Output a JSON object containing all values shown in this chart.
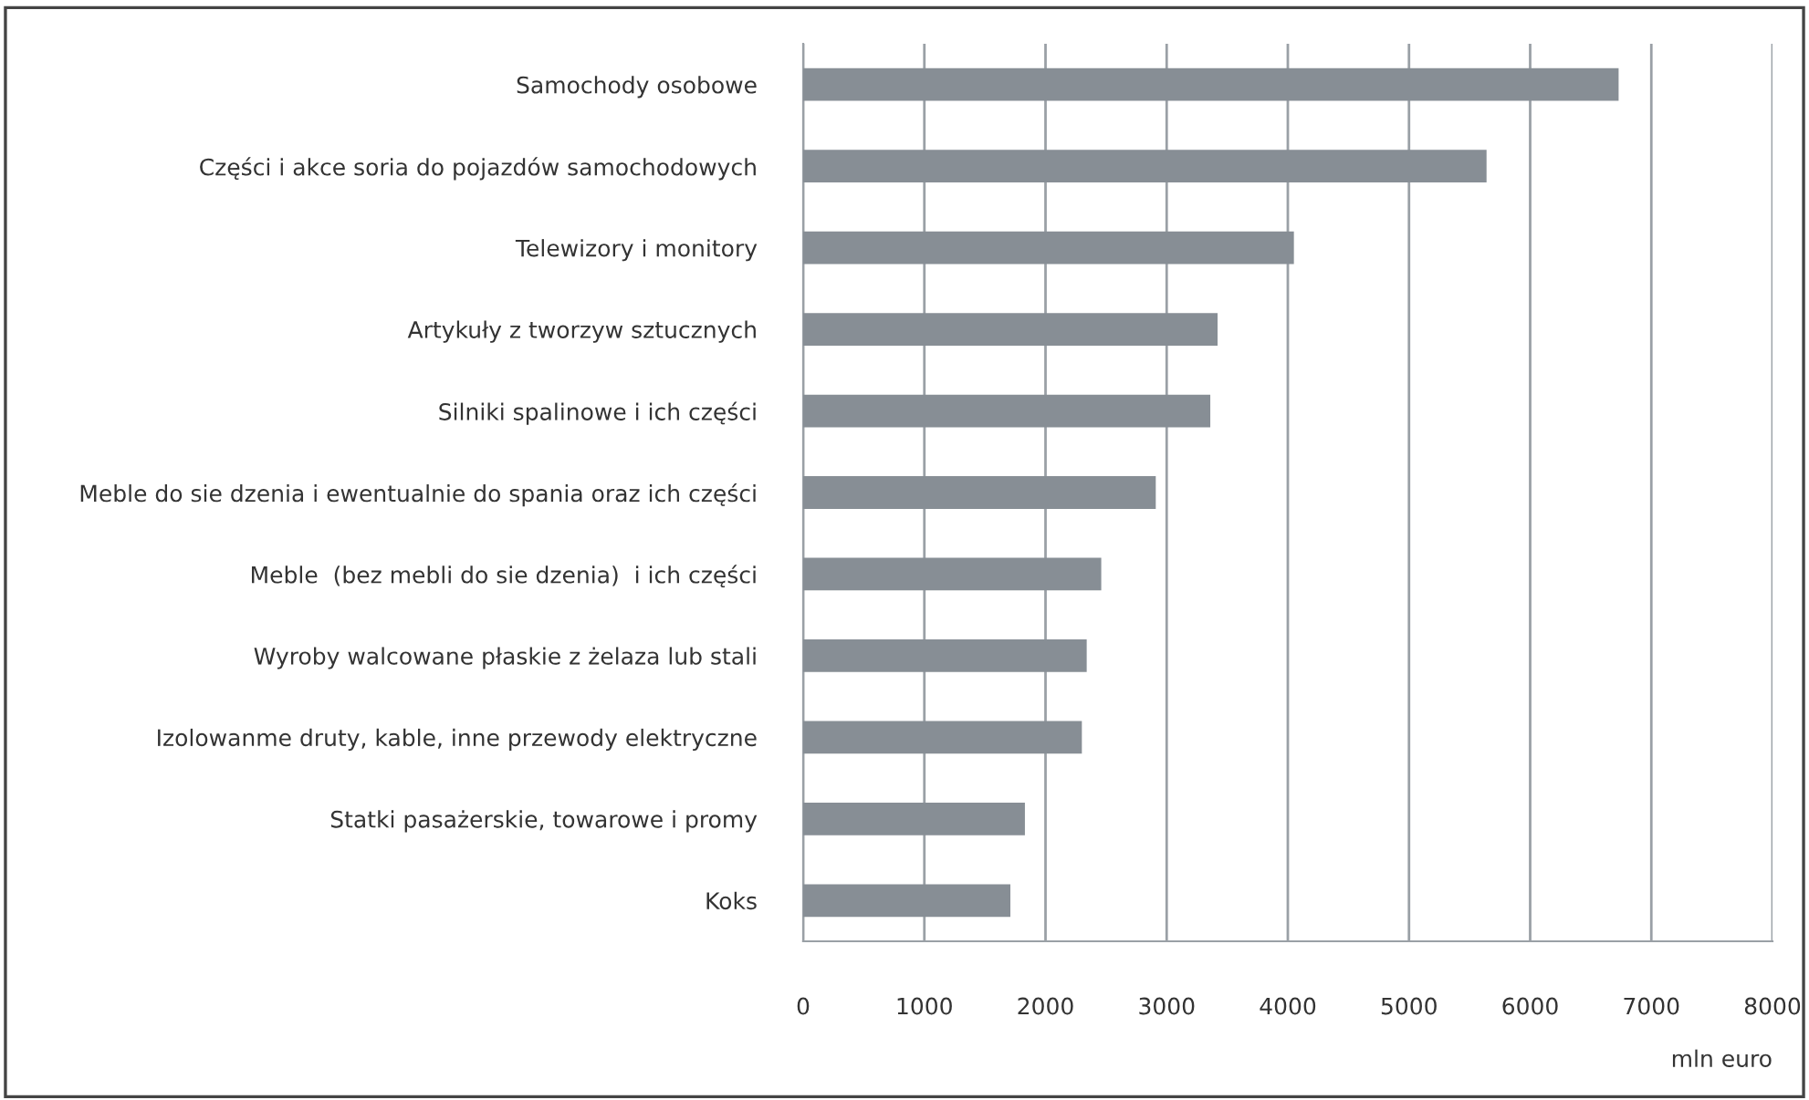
{
  "chart_data": {
    "type": "bar",
    "orientation": "horizontal",
    "xlabel": "mln euro",
    "categories": [
      "Samochody osobowe",
      "Części i akce soria do pojazdów samochodowych",
      "Telewizory i monitory",
      "Artykuły z tworzyw sztucznych",
      "Silniki spalinowe i ich części",
      "Meble do sie dzenia i ewentualnie do spania oraz ich części",
      "Meble  (bez mebli do sie dzenia)  i ich części",
      "Wyroby walcowane płaskie z żelaza lub stali",
      "Izolowanme druty, kable, inne przewody elektryczne",
      "Statki pasażerskie, towarowe i promy",
      "Koks"
    ],
    "values": [
      6730,
      5640,
      4050,
      3420,
      3360,
      2910,
      2460,
      2340,
      2300,
      1830,
      1710
    ],
    "color": "#878e95",
    "xlim": [
      0,
      8000
    ],
    "xticks": [
      0,
      1000,
      2000,
      3000,
      4000,
      5000,
      6000,
      7000,
      8000
    ],
    "grid": "x"
  }
}
